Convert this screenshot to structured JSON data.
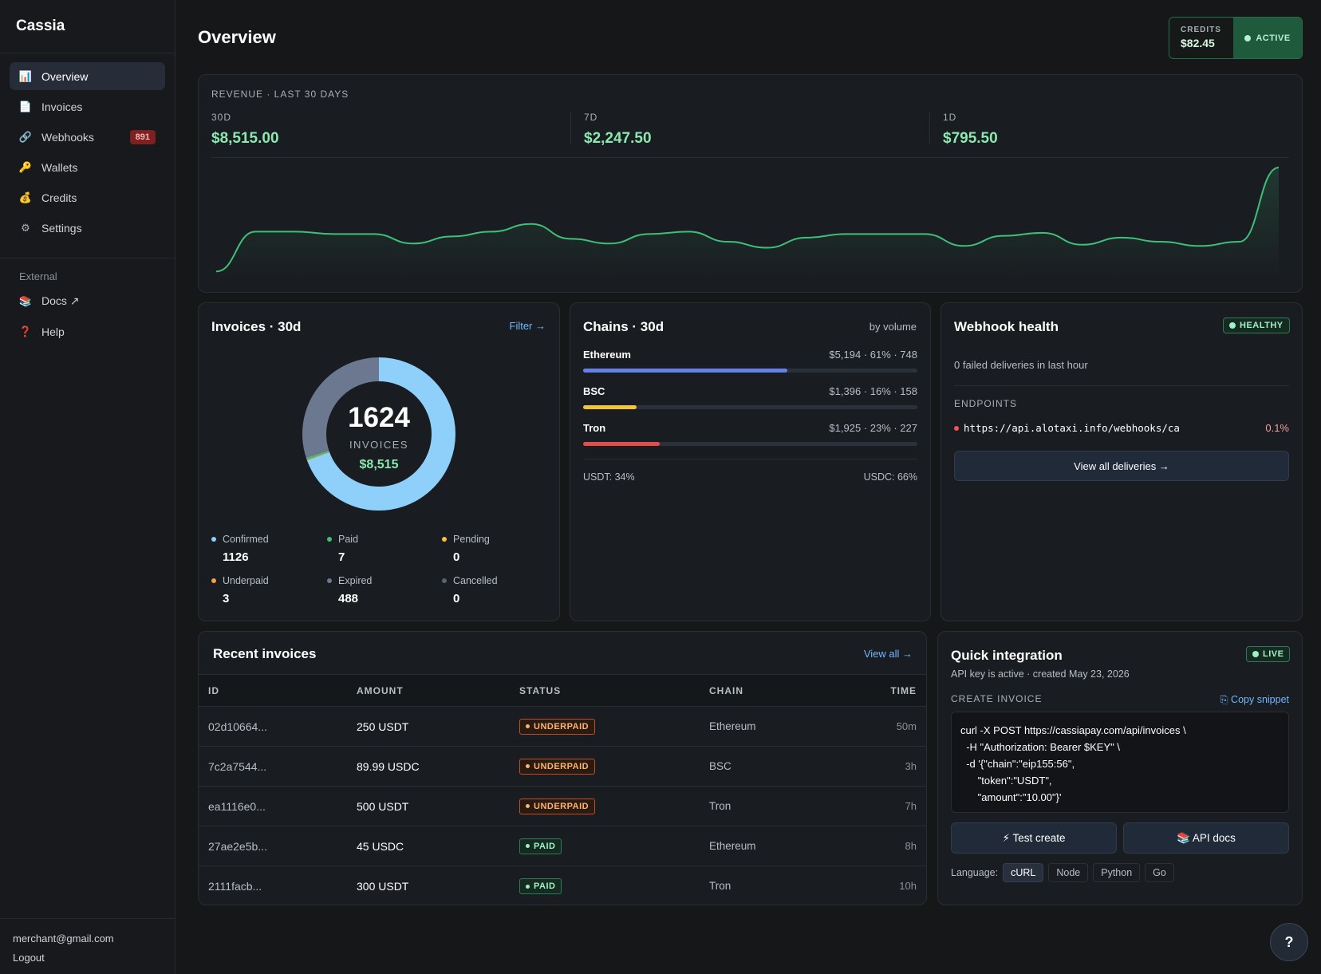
{
  "app": {
    "name": "Cassia"
  },
  "sidebar": {
    "items": [
      {
        "label": "Overview",
        "icon": "chart-icon",
        "glyph": "📊",
        "active": true
      },
      {
        "label": "Invoices",
        "icon": "document-icon",
        "glyph": "📄",
        "active": false
      },
      {
        "label": "Webhooks",
        "icon": "link-icon",
        "glyph": "🔗",
        "active": false,
        "badge": "891"
      },
      {
        "label": "Wallets",
        "icon": "key-icon",
        "glyph": "🔑",
        "active": false
      },
      {
        "label": "Credits",
        "icon": "money-bag-icon",
        "glyph": "💰",
        "active": false
      },
      {
        "label": "Settings",
        "icon": "gear-icon",
        "glyph": "⚙",
        "active": false
      }
    ],
    "external_label": "External",
    "external": [
      {
        "label": "Docs ↗",
        "icon": "books-icon",
        "glyph": "📚"
      },
      {
        "label": "Help",
        "icon": "question-icon",
        "glyph": "❓"
      }
    ],
    "user_email": "merchant@gmail.com",
    "logout_label": "Logout"
  },
  "header": {
    "title": "Overview",
    "credits_label": "CREDITS",
    "credits_value": "$82.45",
    "status": "ACTIVE"
  },
  "revenue": {
    "title": "REVENUE · LAST 30 DAYS",
    "stats": [
      {
        "label": "30D",
        "value": "$8,515.00"
      },
      {
        "label": "7D",
        "value": "$2,247.50"
      },
      {
        "label": "1D",
        "value": "$795.50"
      }
    ],
    "line_color": "#3fbf7a",
    "series": [
      5,
      72,
      72,
      68,
      68,
      52,
      64,
      72,
      85,
      60,
      52,
      68,
      72,
      55,
      45,
      62,
      68,
      68,
      68,
      48,
      65,
      70,
      50,
      62,
      55,
      48,
      55,
      180
    ]
  },
  "invoices_card": {
    "title": "Invoices · 30d",
    "filter_label": "Filter →",
    "total": "1624",
    "total_label": "INVOICES",
    "amount": "$8,515",
    "legend": [
      {
        "name": "Confirmed",
        "value": "1126",
        "count": 1126,
        "color": "#8fd0fb"
      },
      {
        "name": "Paid",
        "value": "7",
        "count": 7,
        "color": "#3fbf7a"
      },
      {
        "name": "Pending",
        "value": "0",
        "count": 0,
        "color": "#f5c04a"
      },
      {
        "name": "Underpaid",
        "value": "3",
        "count": 3,
        "color": "#f5a04a"
      },
      {
        "name": "Expired",
        "value": "488",
        "count": 488,
        "color": "#6b788f"
      },
      {
        "name": "Cancelled",
        "value": "0",
        "count": 0,
        "color": "#5a6270"
      }
    ]
  },
  "chains_card": {
    "title": "Chains · 30d",
    "sort_label": "by volume",
    "chains": [
      {
        "name": "Ethereum",
        "stat": "$5,194 · 61% · 748",
        "share": 0.61,
        "color": "#6580e8"
      },
      {
        "name": "BSC",
        "stat": "$1,396 · 16% · 158",
        "share": 0.16,
        "color": "#f0c43c"
      },
      {
        "name": "Tron",
        "stat": "$1,925 · 23% · 227",
        "share": 0.23,
        "color": "#e0504a"
      }
    ],
    "usdt_label": "USDT: 34%",
    "usdc_label": "USDC: 66%"
  },
  "webhook_card": {
    "title": "Webhook health",
    "status": "HEALTHY",
    "failed_text": "0 failed deliveries in last hour",
    "endpoints_label": "ENDPOINTS",
    "endpoint_url": "https://api.alotaxi.info/webhooks/ca",
    "endpoint_rate": "0.1%",
    "view_all_label": "View all deliveries →"
  },
  "recent": {
    "title": "Recent invoices",
    "view_all_label": "View all →",
    "columns": [
      "ID",
      "AMOUNT",
      "STATUS",
      "CHAIN",
      "TIME"
    ],
    "rows": [
      {
        "id": "02d10664...",
        "amount": "250 USDT",
        "status": "UNDERPAID",
        "chain": "Ethereum",
        "time": "50m"
      },
      {
        "id": "7c2a7544...",
        "amount": "89.99 USDC",
        "status": "UNDERPAID",
        "chain": "BSC",
        "time": "3h"
      },
      {
        "id": "ea1116e0...",
        "amount": "500 USDT",
        "status": "UNDERPAID",
        "chain": "Tron",
        "time": "7h"
      },
      {
        "id": "27ae2e5b...",
        "amount": "45 USDC",
        "status": "PAID",
        "chain": "Ethereum",
        "time": "8h"
      },
      {
        "id": "2111facb...",
        "amount": "300 USDT",
        "status": "PAID",
        "chain": "Tron",
        "time": "10h"
      }
    ]
  },
  "quick": {
    "title": "Quick integration",
    "status": "LIVE",
    "subtitle": "API key is active · created May 23, 2026",
    "create_label": "CREATE INVOICE",
    "copy_label": "⎘ Copy snippet",
    "code": "curl -X POST https://cassiapay.com/api/invoices \\\n  -H \"Authorization: Bearer $KEY\" \\\n  -d '{\"chain\":\"eip155:56\",\n      \"token\":\"USDT\",\n      \"amount\":\"10.00\"}'",
    "test_label": "⚡ Test create",
    "docs_label": "📚 API docs",
    "language_label": "Language:",
    "languages": [
      "cURL",
      "Node",
      "Python",
      "Go"
    ],
    "active_language": "cURL"
  },
  "help_fab": "?"
}
